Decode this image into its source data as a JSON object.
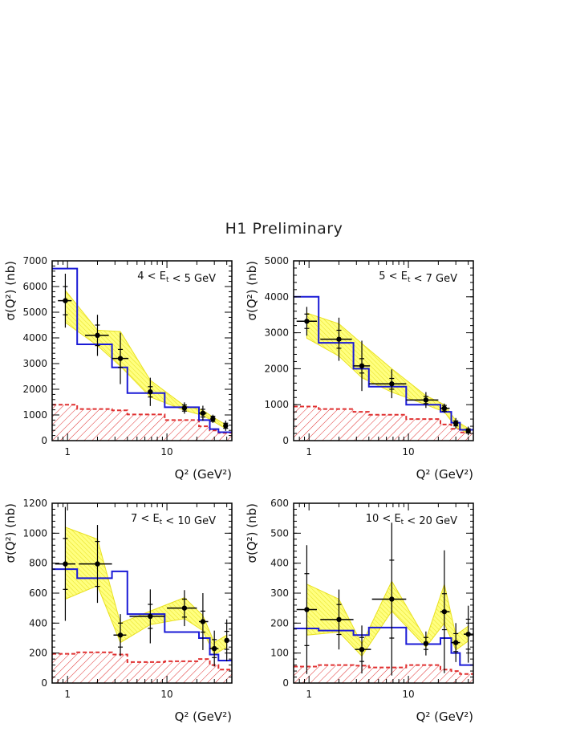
{
  "header": {
    "title": "H1 Preliminary"
  },
  "colors": {
    "data": "#000000",
    "mc_blue": "#1a1ad6",
    "band_fill": "#ffff66",
    "band_edge": "#e8e020",
    "hadronic": "#e03030"
  },
  "chart_data": [
    {
      "type": "line",
      "title": "4 < E_t < 5 GeV",
      "xlabel": "Q² (GeV²)",
      "ylabel": "σ(Q²) (nb)",
      "xscale": "log",
      "xlim": [
        0.7,
        45
      ],
      "ylim": [
        0,
        7000
      ],
      "yticks": [
        0,
        1000,
        2000,
        3000,
        4000,
        5000,
        6000,
        7000
      ],
      "xticks": [
        1,
        10
      ],
      "points": [
        {
          "x": 0.95,
          "y": 5450,
          "xlo": 0.8,
          "xhi": 1.1,
          "estat": 550,
          "etot": 1050
        },
        {
          "x": 2.0,
          "y": 4100,
          "xlo": 1.5,
          "xhi": 2.6,
          "estat": 400,
          "etot": 800
        },
        {
          "x": 3.4,
          "y": 3200,
          "xlo": 2.8,
          "xhi": 4.1,
          "estat": 350,
          "etot": 1000
        },
        {
          "x": 6.8,
          "y": 1900,
          "xlo": 6.8,
          "xhi": 6.8,
          "estat": 200,
          "etot": 550
        },
        {
          "x": 15,
          "y": 1270,
          "xlo": 15,
          "xhi": 15,
          "estat": 120,
          "etot": 220
        },
        {
          "x": 23,
          "y": 1070,
          "xlo": 21,
          "xhi": 25,
          "estat": 150,
          "etot": 290
        },
        {
          "x": 29,
          "y": 850,
          "xlo": 29,
          "xhi": 29,
          "estat": 100,
          "etot": 160
        },
        {
          "x": 39,
          "y": 580,
          "xlo": 39,
          "xhi": 39,
          "estat": 100,
          "etot": 200
        }
      ],
      "band": [
        {
          "x": 0.95,
          "lo": 4600,
          "hi": 5850
        },
        {
          "x": 2.0,
          "lo": 3700,
          "hi": 4300
        },
        {
          "x": 3.4,
          "lo": 2900,
          "hi": 4250
        },
        {
          "x": 6.8,
          "lo": 1700,
          "hi": 2350
        },
        {
          "x": 15,
          "lo": 1180,
          "hi": 1360
        },
        {
          "x": 23,
          "lo": 980,
          "hi": 1180
        },
        {
          "x": 29,
          "lo": 760,
          "hi": 920
        },
        {
          "x": 39,
          "lo": 470,
          "hi": 620
        }
      ],
      "mc_blue": [
        {
          "x0": 0.7,
          "x1": 1.25,
          "y": 6700
        },
        {
          "x0": 1.25,
          "x1": 2.8,
          "y": 3750
        },
        {
          "x0": 2.8,
          "x1": 4.0,
          "y": 2850
        },
        {
          "x0": 4.0,
          "x1": 9.5,
          "y": 1850
        },
        {
          "x0": 9.5,
          "x1": 21,
          "y": 1300
        },
        {
          "x0": 21,
          "x1": 27,
          "y": 800
        },
        {
          "x0": 27,
          "x1": 33,
          "y": 450
        },
        {
          "x0": 33,
          "x1": 45,
          "y": 330
        }
      ],
      "hadronic": [
        {
          "x0": 0.7,
          "x1": 1.25,
          "y": 1400
        },
        {
          "x0": 1.25,
          "x1": 2.8,
          "y": 1230
        },
        {
          "x0": 2.8,
          "x1": 4.0,
          "y": 1180
        },
        {
          "x0": 4.0,
          "x1": 9.5,
          "y": 1020
        },
        {
          "x0": 9.5,
          "x1": 21,
          "y": 800
        },
        {
          "x0": 21,
          "x1": 27,
          "y": 560
        },
        {
          "x0": 27,
          "x1": 33,
          "y": 400
        },
        {
          "x0": 33,
          "x1": 45,
          "y": 300
        }
      ]
    },
    {
      "type": "line",
      "title": "5 < E_t < 7 GeV",
      "xlabel": "Q² (GeV²)",
      "ylabel": "σ(Q²) (nb)",
      "xscale": "log",
      "xlim": [
        0.7,
        45
      ],
      "ylim": [
        0,
        5000
      ],
      "yticks": [
        0,
        1000,
        2000,
        3000,
        4000,
        5000
      ],
      "xticks": [
        1,
        10
      ],
      "points": [
        {
          "x": 0.95,
          "y": 3320,
          "xlo": 0.75,
          "xhi": 1.2,
          "estat": 200,
          "etot": 400
        },
        {
          "x": 2.0,
          "y": 2820,
          "xlo": 1.3,
          "xhi": 2.7,
          "estat": 250,
          "etot": 600
        },
        {
          "x": 3.4,
          "y": 2080,
          "xlo": 2.8,
          "xhi": 4.1,
          "estat": 200,
          "etot": 700
        },
        {
          "x": 6.8,
          "y": 1580,
          "xlo": 4.0,
          "xhi": 9.5,
          "estat": 150,
          "etot": 400
        },
        {
          "x": 15,
          "y": 1130,
          "xlo": 9.5,
          "xhi": 20,
          "estat": 100,
          "etot": 220
        },
        {
          "x": 23,
          "y": 900,
          "xlo": 21,
          "xhi": 26,
          "estat": 80,
          "etot": 130
        },
        {
          "x": 30,
          "y": 480,
          "xlo": 30,
          "xhi": 30,
          "estat": 70,
          "etot": 150
        },
        {
          "x": 40,
          "y": 270,
          "xlo": 40,
          "xhi": 40,
          "estat": 60,
          "etot": 120
        }
      ],
      "band": [
        {
          "x": 0.95,
          "lo": 2850,
          "hi": 3550
        },
        {
          "x": 2.0,
          "lo": 2350,
          "hi": 3250
        },
        {
          "x": 3.4,
          "lo": 1750,
          "hi": 2700
        },
        {
          "x": 6.8,
          "lo": 1350,
          "hi": 2000
        },
        {
          "x": 15,
          "lo": 1000,
          "hi": 1250
        },
        {
          "x": 23,
          "lo": 800,
          "hi": 1000
        },
        {
          "x": 30,
          "lo": 380,
          "hi": 560
        },
        {
          "x": 40,
          "lo": 200,
          "hi": 340
        }
      ],
      "mc_blue": [
        {
          "x0": 0.7,
          "x1": 1.25,
          "y": 4000
        },
        {
          "x0": 1.25,
          "x1": 2.8,
          "y": 2720
        },
        {
          "x0": 2.8,
          "x1": 4.0,
          "y": 2000
        },
        {
          "x0": 4.0,
          "x1": 9.5,
          "y": 1500
        },
        {
          "x0": 9.5,
          "x1": 21,
          "y": 1000
        },
        {
          "x0": 21,
          "x1": 27,
          "y": 800
        },
        {
          "x0": 27,
          "x1": 33,
          "y": 500
        },
        {
          "x0": 33,
          "x1": 45,
          "y": 300
        }
      ],
      "hadronic": [
        {
          "x0": 0.7,
          "x1": 1.25,
          "y": 950
        },
        {
          "x0": 1.25,
          "x1": 2.8,
          "y": 880
        },
        {
          "x0": 2.8,
          "x1": 4.0,
          "y": 800
        },
        {
          "x0": 4.0,
          "x1": 9.5,
          "y": 720
        },
        {
          "x0": 9.5,
          "x1": 21,
          "y": 600
        },
        {
          "x0": 21,
          "x1": 27,
          "y": 450
        },
        {
          "x0": 27,
          "x1": 33,
          "y": 330
        },
        {
          "x0": 33,
          "x1": 45,
          "y": 230
        }
      ]
    },
    {
      "type": "line",
      "title": "7 < E_t < 10 GeV",
      "xlabel": "Q² (GeV²)",
      "ylabel": "σ(Q²) (nb)",
      "xscale": "log",
      "xlim": [
        0.7,
        45
      ],
      "ylim": [
        0,
        1200
      ],
      "yticks": [
        0,
        200,
        400,
        600,
        800,
        1000,
        1200
      ],
      "xticks": [
        1,
        10
      ],
      "points": [
        {
          "x": 0.95,
          "y": 795,
          "xlo": 0.75,
          "xhi": 1.2,
          "estat": 170,
          "etot": 380
        },
        {
          "x": 2.0,
          "y": 795,
          "xlo": 1.3,
          "xhi": 2.8,
          "estat": 150,
          "etot": 260
        },
        {
          "x": 3.4,
          "y": 320,
          "xlo": 2.9,
          "xhi": 3.9,
          "estat": 80,
          "etot": 140
        },
        {
          "x": 6.8,
          "y": 445,
          "xlo": 4.2,
          "xhi": 9.5,
          "estat": 80,
          "etot": 180
        },
        {
          "x": 15,
          "y": 500,
          "xlo": 10,
          "xhi": 20,
          "estat": 60,
          "etot": 120
        },
        {
          "x": 23,
          "y": 410,
          "xlo": 21,
          "xhi": 26,
          "estat": 70,
          "etot": 190
        },
        {
          "x": 30,
          "y": 230,
          "xlo": 27,
          "xhi": 33,
          "estat": 60,
          "etot": 120
        },
        {
          "x": 40,
          "y": 285,
          "xlo": 40,
          "xhi": 40,
          "estat": 60,
          "etot": 140
        }
      ],
      "band": [
        {
          "x": 0.95,
          "lo": 560,
          "hi": 1040
        },
        {
          "x": 2.0,
          "lo": 650,
          "hi": 960
        },
        {
          "x": 3.4,
          "lo": 270,
          "hi": 400
        },
        {
          "x": 6.8,
          "lo": 390,
          "hi": 480
        },
        {
          "x": 15,
          "lo": 430,
          "hi": 570
        },
        {
          "x": 23,
          "lo": 350,
          "hi": 450
        },
        {
          "x": 30,
          "lo": 190,
          "hi": 270
        },
        {
          "x": 40,
          "lo": 240,
          "hi": 320
        }
      ],
      "mc_blue": [
        {
          "x0": 0.7,
          "x1": 1.25,
          "y": 760
        },
        {
          "x0": 1.25,
          "x1": 2.8,
          "y": 700
        },
        {
          "x0": 2.8,
          "x1": 4.0,
          "y": 745
        },
        {
          "x0": 4.0,
          "x1": 9.5,
          "y": 460
        },
        {
          "x0": 9.5,
          "x1": 21,
          "y": 340
        },
        {
          "x0": 21,
          "x1": 27,
          "y": 300
        },
        {
          "x0": 27,
          "x1": 33,
          "y": 190
        },
        {
          "x0": 33,
          "x1": 45,
          "y": 150
        }
      ],
      "hadronic": [
        {
          "x0": 0.7,
          "x1": 1.25,
          "y": 195
        },
        {
          "x0": 1.25,
          "x1": 2.8,
          "y": 205
        },
        {
          "x0": 2.8,
          "x1": 4.0,
          "y": 190
        },
        {
          "x0": 4.0,
          "x1": 9.5,
          "y": 140
        },
        {
          "x0": 9.5,
          "x1": 21,
          "y": 145
        },
        {
          "x0": 21,
          "x1": 27,
          "y": 160
        },
        {
          "x0": 27,
          "x1": 33,
          "y": 120
        },
        {
          "x0": 33,
          "x1": 45,
          "y": 90
        }
      ]
    },
    {
      "type": "line",
      "title": "10 < E_t < 20 GeV",
      "xlabel": "Q² (GeV²)",
      "ylabel": "σ(Q²) (nb)",
      "xscale": "log",
      "xlim": [
        0.7,
        45
      ],
      "ylim": [
        0,
        600
      ],
      "yticks": [
        0,
        100,
        200,
        300,
        400,
        500,
        600
      ],
      "xticks": [
        1,
        10
      ],
      "points": [
        {
          "x": 0.95,
          "y": 245,
          "xlo": 0.75,
          "xhi": 1.2,
          "estat": 120,
          "etot": 215
        },
        {
          "x": 2.0,
          "y": 212,
          "xlo": 1.3,
          "xhi": 2.8,
          "estat": 50,
          "etot": 100
        },
        {
          "x": 3.4,
          "y": 112,
          "xlo": 2.9,
          "xhi": 4.2,
          "estat": 40,
          "etot": 80
        },
        {
          "x": 6.8,
          "y": 280,
          "xlo": 4.3,
          "xhi": 9.5,
          "estat": 130,
          "etot": 255
        },
        {
          "x": 15,
          "y": 132,
          "xlo": 15,
          "xhi": 15,
          "estat": 20,
          "etot": 40
        },
        {
          "x": 23,
          "y": 238,
          "xlo": 21,
          "xhi": 26,
          "estat": 60,
          "etot": 205
        },
        {
          "x": 30,
          "y": 135,
          "xlo": 27,
          "xhi": 33,
          "estat": 30,
          "etot": 65
        },
        {
          "x": 40,
          "y": 163,
          "xlo": 36,
          "xhi": 45,
          "estat": 50,
          "etot": 95
        }
      ],
      "band": [
        {
          "x": 0.95,
          "lo": 160,
          "hi": 330
        },
        {
          "x": 2.0,
          "lo": 170,
          "hi": 280
        },
        {
          "x": 3.4,
          "lo": 90,
          "hi": 130
        },
        {
          "x": 6.8,
          "lo": 240,
          "hi": 340
        },
        {
          "x": 15,
          "lo": 120,
          "hi": 145
        },
        {
          "x": 23,
          "lo": 200,
          "hi": 330
        },
        {
          "x": 30,
          "lo": 110,
          "hi": 160
        },
        {
          "x": 40,
          "lo": 140,
          "hi": 190
        }
      ],
      "mc_blue": [
        {
          "x0": 0.7,
          "x1": 1.25,
          "y": 182
        },
        {
          "x0": 1.25,
          "x1": 2.8,
          "y": 175
        },
        {
          "x0": 2.8,
          "x1": 4.0,
          "y": 160
        },
        {
          "x0": 4.0,
          "x1": 9.5,
          "y": 185
        },
        {
          "x0": 9.5,
          "x1": 21,
          "y": 130
        },
        {
          "x0": 21,
          "x1": 27,
          "y": 150
        },
        {
          "x0": 27,
          "x1": 33,
          "y": 100
        },
        {
          "x0": 33,
          "x1": 45,
          "y": 60
        }
      ],
      "hadronic": [
        {
          "x0": 0.7,
          "x1": 1.25,
          "y": 55
        },
        {
          "x0": 1.25,
          "x1": 2.8,
          "y": 60
        },
        {
          "x0": 2.8,
          "x1": 4.0,
          "y": 58
        },
        {
          "x0": 4.0,
          "x1": 9.5,
          "y": 52
        },
        {
          "x0": 9.5,
          "x1": 21,
          "y": 60
        },
        {
          "x0": 21,
          "x1": 27,
          "y": 45
        },
        {
          "x0": 27,
          "x1": 33,
          "y": 40
        },
        {
          "x0": 33,
          "x1": 45,
          "y": 30
        }
      ]
    }
  ]
}
